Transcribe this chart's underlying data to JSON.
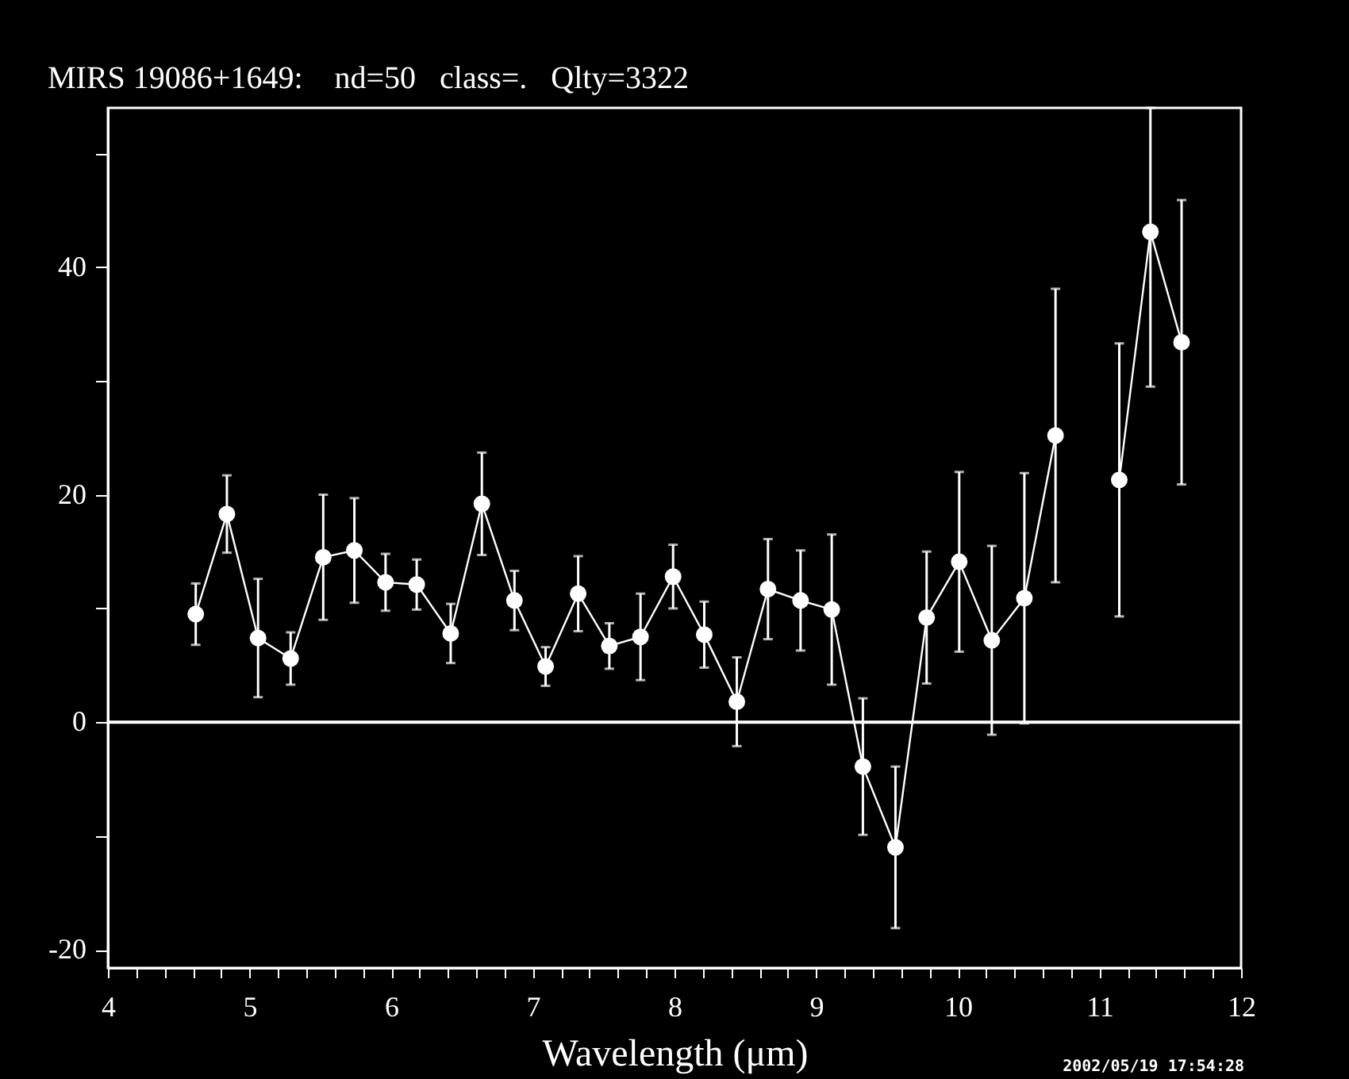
{
  "chart_data": {
    "type": "line",
    "title": "MIRS 19086+1649:    nd=50   class=.   Qlty=3322",
    "xlabel": "Wavelength (μm)",
    "x": [
      4.62,
      4.84,
      5.06,
      5.29,
      5.52,
      5.74,
      5.96,
      6.18,
      6.42,
      6.64,
      6.87,
      7.09,
      7.32,
      7.54,
      7.76,
      7.99,
      8.21,
      8.44,
      8.66,
      8.89,
      9.11,
      9.33,
      9.56,
      9.78,
      10.01,
      10.24,
      10.47,
      10.69
    ],
    "series": [
      {
        "color": "#ffffff",
        "values": [
          9.5,
          18.3,
          7.4,
          5.6,
          14.5,
          15.1,
          12.3,
          12.1,
          7.8,
          19.2,
          10.7,
          4.9,
          11.3,
          6.7,
          7.5,
          12.8,
          7.7,
          1.8,
          11.7,
          10.7,
          9.9,
          -3.9,
          -11.0,
          9.2,
          14.1,
          7.2,
          10.9,
          25.2
        ],
        "errors": [
          2.7,
          3.4,
          5.2,
          2.3,
          5.5,
          4.6,
          2.5,
          2.2,
          2.6,
          4.5,
          2.6,
          1.7,
          3.3,
          2.0,
          3.8,
          2.8,
          2.9,
          3.9,
          4.4,
          4.4,
          6.6,
          6.0,
          7.1,
          5.8,
          7.9,
          8.3,
          11.0,
          12.9
        ]
      },
      {
        "color": "#ffffff",
        "x": [
          11.14,
          11.36,
          11.58
        ],
        "values": [
          21.3,
          43.1,
          33.4
        ],
        "errors": [
          12.0,
          [
            29.5,
            54
          ],
          12.5
        ]
      }
    ],
    "marker": "circle",
    "line_style": "solid",
    "xlim": [
      4,
      12
    ],
    "ylim": [
      -21.6,
      54
    ],
    "xticks": [
      4,
      {
        "value": 4.2,
        "label": null
      },
      {
        "value": 4.4,
        "label": null
      },
      {
        "value": 4.6,
        "label": null
      },
      {
        "value": 4.8,
        "label": null
      },
      5,
      {
        "value": 5.2,
        "label": null
      },
      {
        "value": 5.4,
        "label": null
      },
      {
        "value": 5.6,
        "label": null
      },
      {
        "value": 5.8,
        "label": null
      },
      6,
      {
        "value": 6.2,
        "label": null
      },
      {
        "value": 6.4,
        "label": null
      },
      {
        "value": 6.6,
        "label": null
      },
      {
        "value": 6.8,
        "label": null
      },
      7,
      {
        "value": 7.2,
        "label": null
      },
      {
        "value": 7.4,
        "label": null
      },
      {
        "value": 7.6,
        "label": null
      },
      {
        "value": 7.8,
        "label": null
      },
      8,
      {
        "value": 8.2,
        "label": null
      },
      {
        "value": 8.4,
        "label": null
      },
      {
        "value": 8.6,
        "label": null
      },
      {
        "value": 8.8,
        "label": null
      },
      9,
      {
        "value": 9.2,
        "label": null
      },
      {
        "value": 9.4,
        "label": null
      },
      {
        "value": 9.6,
        "label": null
      },
      {
        "value": 9.8,
        "label": null
      },
      10,
      {
        "value": 10.2,
        "label": null
      },
      {
        "value": 10.4,
        "label": null
      },
      {
        "value": 10.6,
        "label": null
      },
      {
        "value": 10.8,
        "label": null
      },
      11,
      {
        "value": 11.2,
        "label": null
      },
      {
        "value": 11.4,
        "label": null
      },
      {
        "value": 11.6,
        "label": null
      },
      {
        "value": 11.8,
        "label": null
      },
      12
    ],
    "yticks": [
      -20,
      {
        "value": -10,
        "label": null
      },
      0,
      {
        "value": 10,
        "label": null
      },
      20,
      {
        "value": 30,
        "label": null
      },
      40,
      {
        "value": 50,
        "label": null
      }
    ],
    "ref_lines": [
      {
        "axis": "y",
        "value": 0,
        "color": "#ffffff"
      }
    ],
    "annotations": [
      "2002/05/19 17:54:28"
    ]
  }
}
